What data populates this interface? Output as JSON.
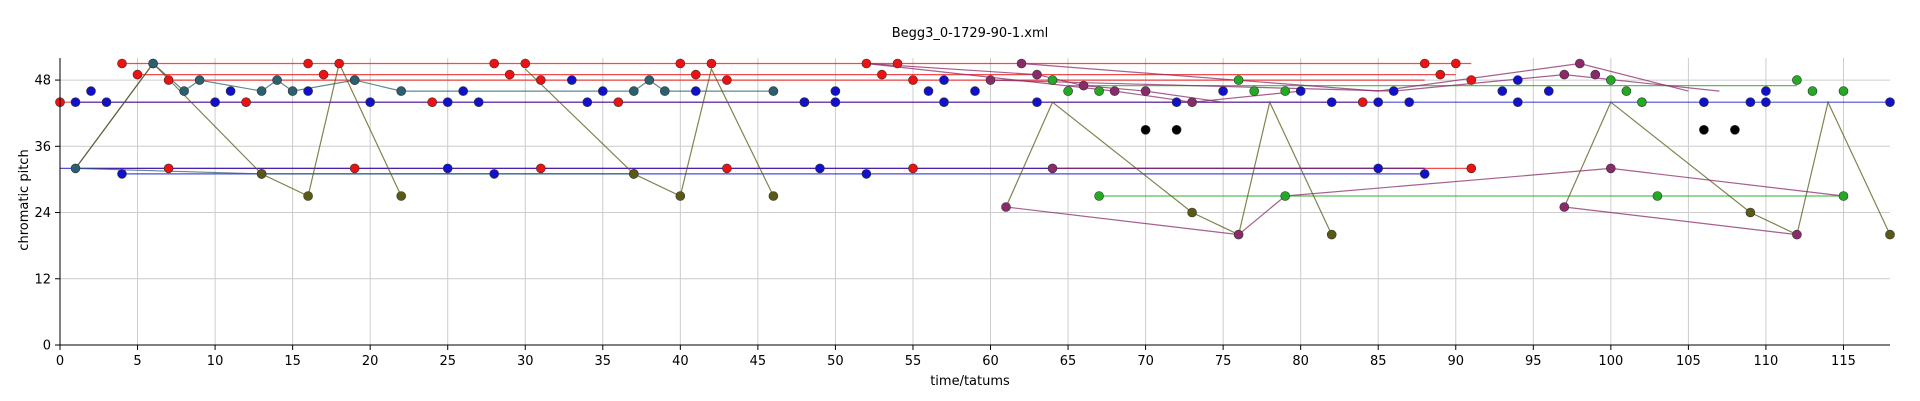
{
  "chart_data": {
    "type": "scatter",
    "title": "Begg3_0-1729-90-1.xml",
    "xlabel": "time/tatums",
    "ylabel": "chromatic pitch",
    "xlim": [
      0,
      118
    ],
    "ylim": [
      0,
      52
    ],
    "xticks": [
      0,
      5,
      10,
      15,
      20,
      25,
      30,
      35,
      40,
      45,
      50,
      55,
      60,
      65,
      70,
      75,
      80,
      85,
      90,
      95,
      100,
      105,
      110,
      115
    ],
    "yticks": [
      0,
      12,
      24,
      36,
      48
    ],
    "grid": true,
    "legend": "none",
    "series": [
      {
        "color": "#ee1111",
        "lines": [
          [
            [
              4,
              51
            ],
            [
              91,
              51
            ]
          ],
          [
            [
              5,
              49
            ],
            [
              90,
              49
            ]
          ],
          [
            [
              7,
              48
            ],
            [
              88,
              48
            ]
          ],
          [
            [
              0,
              44
            ],
            [
              84,
              44
            ]
          ],
          [
            [
              1,
              32
            ],
            [
              91,
              32
            ]
          ]
        ],
        "points": [
          [
            4,
            51
          ],
          [
            6,
            51
          ],
          [
            16,
            51
          ],
          [
            18,
            51
          ],
          [
            28,
            51
          ],
          [
            30,
            51
          ],
          [
            40,
            51
          ],
          [
            42,
            51
          ],
          [
            52,
            51
          ],
          [
            54,
            51
          ],
          [
            88,
            51
          ],
          [
            90,
            51
          ],
          [
            5,
            49
          ],
          [
            17,
            49
          ],
          [
            29,
            49
          ],
          [
            41,
            49
          ],
          [
            53,
            49
          ],
          [
            89,
            49
          ],
          [
            7,
            48
          ],
          [
            19,
            48
          ],
          [
            31,
            48
          ],
          [
            43,
            48
          ],
          [
            55,
            48
          ],
          [
            91,
            48
          ],
          [
            0,
            44
          ],
          [
            12,
            44
          ],
          [
            24,
            44
          ],
          [
            36,
            44
          ],
          [
            48,
            44
          ],
          [
            84,
            44
          ],
          [
            7,
            32
          ],
          [
            19,
            32
          ],
          [
            31,
            32
          ],
          [
            43,
            32
          ],
          [
            55,
            32
          ],
          [
            91,
            32
          ]
        ]
      },
      {
        "color": "#1111cc",
        "lines": [
          [
            [
              1,
              44
            ],
            [
              118,
              44
            ]
          ],
          [
            [
              0,
              32
            ],
            [
              88,
              32
            ]
          ],
          [
            [
              4,
              31
            ],
            [
              88,
              31
            ]
          ]
        ],
        "points": [
          [
            1,
            44
          ],
          [
            3,
            44
          ],
          [
            10,
            44
          ],
          [
            20,
            44
          ],
          [
            25,
            44
          ],
          [
            27,
            44
          ],
          [
            34,
            44
          ],
          [
            48,
            44
          ],
          [
            50,
            44
          ],
          [
            57,
            44
          ],
          [
            63,
            44
          ],
          [
            72,
            44
          ],
          [
            82,
            44
          ],
          [
            85,
            44
          ],
          [
            87,
            44
          ],
          [
            94,
            44
          ],
          [
            106,
            44
          ],
          [
            109,
            44
          ],
          [
            110,
            44
          ],
          [
            118,
            44
          ],
          [
            2,
            46
          ],
          [
            11,
            46
          ],
          [
            16,
            46
          ],
          [
            26,
            46
          ],
          [
            35,
            46
          ],
          [
            41,
            46
          ],
          [
            50,
            46
          ],
          [
            56,
            46
          ],
          [
            59,
            46
          ],
          [
            75,
            46
          ],
          [
            80,
            46
          ],
          [
            86,
            46
          ],
          [
            93,
            46
          ],
          [
            96,
            46
          ],
          [
            110,
            46
          ],
          [
            33,
            48
          ],
          [
            57,
            48
          ],
          [
            94,
            48
          ],
          [
            4,
            31
          ],
          [
            28,
            31
          ],
          [
            52,
            31
          ],
          [
            25,
            32
          ],
          [
            49,
            32
          ],
          [
            85,
            32
          ],
          [
            88,
            31
          ]
        ]
      },
      {
        "color": "#22aa22",
        "lines": [
          [
            [
              65,
              47
            ],
            [
              112,
              47
            ]
          ],
          [
            [
              67,
              27
            ],
            [
              115,
              27
            ]
          ]
        ],
        "points": [
          [
            64,
            48
          ],
          [
            65,
            46
          ],
          [
            67,
            46
          ],
          [
            76,
            48
          ],
          [
            77,
            46
          ],
          [
            79,
            46
          ],
          [
            100,
            48
          ],
          [
            101,
            46
          ],
          [
            102,
            44
          ],
          [
            112,
            48
          ],
          [
            113,
            46
          ],
          [
            115,
            46
          ],
          [
            67,
            27
          ],
          [
            79,
            27
          ],
          [
            103,
            27
          ],
          [
            115,
            27
          ]
        ]
      },
      {
        "color": "#2a6070",
        "lines": [
          [
            [
              1,
              32
            ],
            [
              6,
              51
            ],
            [
              8,
              46
            ],
            [
              9,
              48
            ],
            [
              13,
              46
            ],
            [
              14,
              48
            ],
            [
              15,
              46
            ],
            [
              19,
              48
            ],
            [
              22,
              46
            ],
            [
              37,
              46
            ],
            [
              38,
              48
            ],
            [
              39,
              46
            ],
            [
              46,
              46
            ]
          ],
          [
            [
              1,
              32
            ],
            [
              13,
              31
            ],
            [
              37,
              31
            ]
          ]
        ],
        "points": [
          [
            1,
            32
          ],
          [
            6,
            51
          ],
          [
            8,
            46
          ],
          [
            9,
            48
          ],
          [
            13,
            46
          ],
          [
            14,
            48
          ],
          [
            15,
            46
          ],
          [
            19,
            48
          ],
          [
            22,
            46
          ],
          [
            37,
            46
          ],
          [
            38,
            48
          ],
          [
            39,
            46
          ],
          [
            46,
            46
          ],
          [
            13,
            31
          ],
          [
            37,
            31
          ]
        ]
      },
      {
        "color": "#5a5a14",
        "lines": [
          [
            [
              1,
              32
            ],
            [
              6,
              51
            ],
            [
              13,
              31
            ],
            [
              16,
              27
            ],
            [
              18,
              51
            ],
            [
              22,
              27
            ]
          ],
          [
            [
              30,
              50
            ],
            [
              37,
              31
            ],
            [
              40,
              27
            ],
            [
              42,
              50
            ],
            [
              46,
              27
            ]
          ],
          [
            [
              61,
              25
            ],
            [
              64,
              44
            ],
            [
              73,
              24
            ],
            [
              76,
              20
            ],
            [
              78,
              44
            ],
            [
              82,
              20
            ]
          ],
          [
            [
              97,
              25
            ],
            [
              100,
              44
            ],
            [
              109,
              24
            ],
            [
              112,
              20
            ],
            [
              114,
              44
            ],
            [
              118,
              20
            ]
          ]
        ],
        "points": [
          [
            13,
            31
          ],
          [
            16,
            27
          ],
          [
            22,
            27
          ],
          [
            37,
            31
          ],
          [
            40,
            27
          ],
          [
            46,
            27
          ],
          [
            73,
            24
          ],
          [
            82,
            20
          ],
          [
            109,
            24
          ],
          [
            118,
            20
          ]
        ]
      },
      {
        "color": "#8b2a6a",
        "lines": [
          [
            [
              61,
              25
            ],
            [
              76,
              20
            ],
            [
              79,
              27
            ]
          ],
          [
            [
              79,
              27
            ],
            [
              100,
              32
            ],
            [
              115,
              27
            ]
          ],
          [
            [
              97,
              25
            ],
            [
              112,
              20
            ]
          ],
          [
            [
              64,
              32
            ],
            [
              88,
              32
            ]
          ],
          [
            [
              52,
              51
            ],
            [
              63,
              49
            ],
            [
              66,
              47
            ],
            [
              70,
              46
            ],
            [
              75,
              44
            ]
          ],
          [
            [
              52,
              51
            ],
            [
              68,
              46
            ],
            [
              73,
              44
            ],
            [
              80,
              46
            ]
          ],
          [
            [
              62,
              51
            ],
            [
              85,
              46
            ],
            [
              98,
              51
            ],
            [
              105,
              46
            ]
          ],
          [
            [
              60,
              48
            ],
            [
              86,
              46
            ],
            [
              97,
              49
            ],
            [
              107,
              46
            ]
          ]
        ],
        "points": [
          [
            61,
            25
          ],
          [
            64,
            32
          ],
          [
            76,
            20
          ],
          [
            97,
            25
          ],
          [
            100,
            32
          ],
          [
            112,
            20
          ],
          [
            62,
            51
          ],
          [
            63,
            49
          ],
          [
            60,
            48
          ],
          [
            66,
            47
          ],
          [
            68,
            46
          ],
          [
            70,
            46
          ],
          [
            73,
            44
          ],
          [
            98,
            51
          ],
          [
            97,
            49
          ],
          [
            99,
            49
          ]
        ]
      },
      {
        "color": "#000000",
        "lines": [],
        "points": [
          [
            70,
            39
          ],
          [
            72,
            39
          ],
          [
            106,
            39
          ],
          [
            108,
            39
          ]
        ]
      }
    ]
  }
}
